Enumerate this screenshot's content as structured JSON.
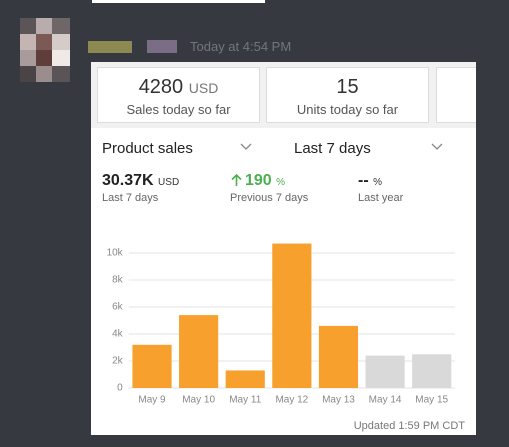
{
  "message": {
    "timestamp": "Today at 4:54 PM"
  },
  "card": {
    "tiles": [
      {
        "value": "4280",
        "unit": "USD",
        "label": "Sales today so far"
      },
      {
        "value": "15",
        "label": "Units today so far"
      }
    ],
    "metric": "Product sales",
    "period": "Last 7 days",
    "stats": [
      {
        "value": "30.37K",
        "unit": "USD",
        "label": "Last 7 days"
      },
      {
        "value": "190",
        "unit": "%",
        "label": "Previous 7 days"
      },
      {
        "value": "--",
        "unit": "%",
        "label": "Last year"
      }
    ],
    "footer": "Updated 1:59 PM CDT"
  },
  "chart_data": {
    "type": "bar",
    "categories": [
      "May 9",
      "May 10",
      "May 11",
      "May 12",
      "May 13",
      "May 14",
      "May 15"
    ],
    "values": [
      3200,
      5400,
      1300,
      10700,
      4600,
      2400,
      2500
    ],
    "colors": [
      "#f7a02d",
      "#f7a02d",
      "#f7a02d",
      "#f7a02d",
      "#f7a02d",
      "#d9d9d9",
      "#d9d9d9"
    ],
    "ylim": [
      0,
      11000
    ],
    "yticks": [
      0,
      {
        "value": 2000,
        "label": "2k"
      },
      {
        "value": 4000,
        "label": "4k"
      },
      {
        "value": 6000,
        "label": "6k"
      },
      {
        "value": 8000,
        "label": "8k"
      },
      {
        "value": 10000,
        "label": "10k"
      }
    ],
    "grid": true
  }
}
